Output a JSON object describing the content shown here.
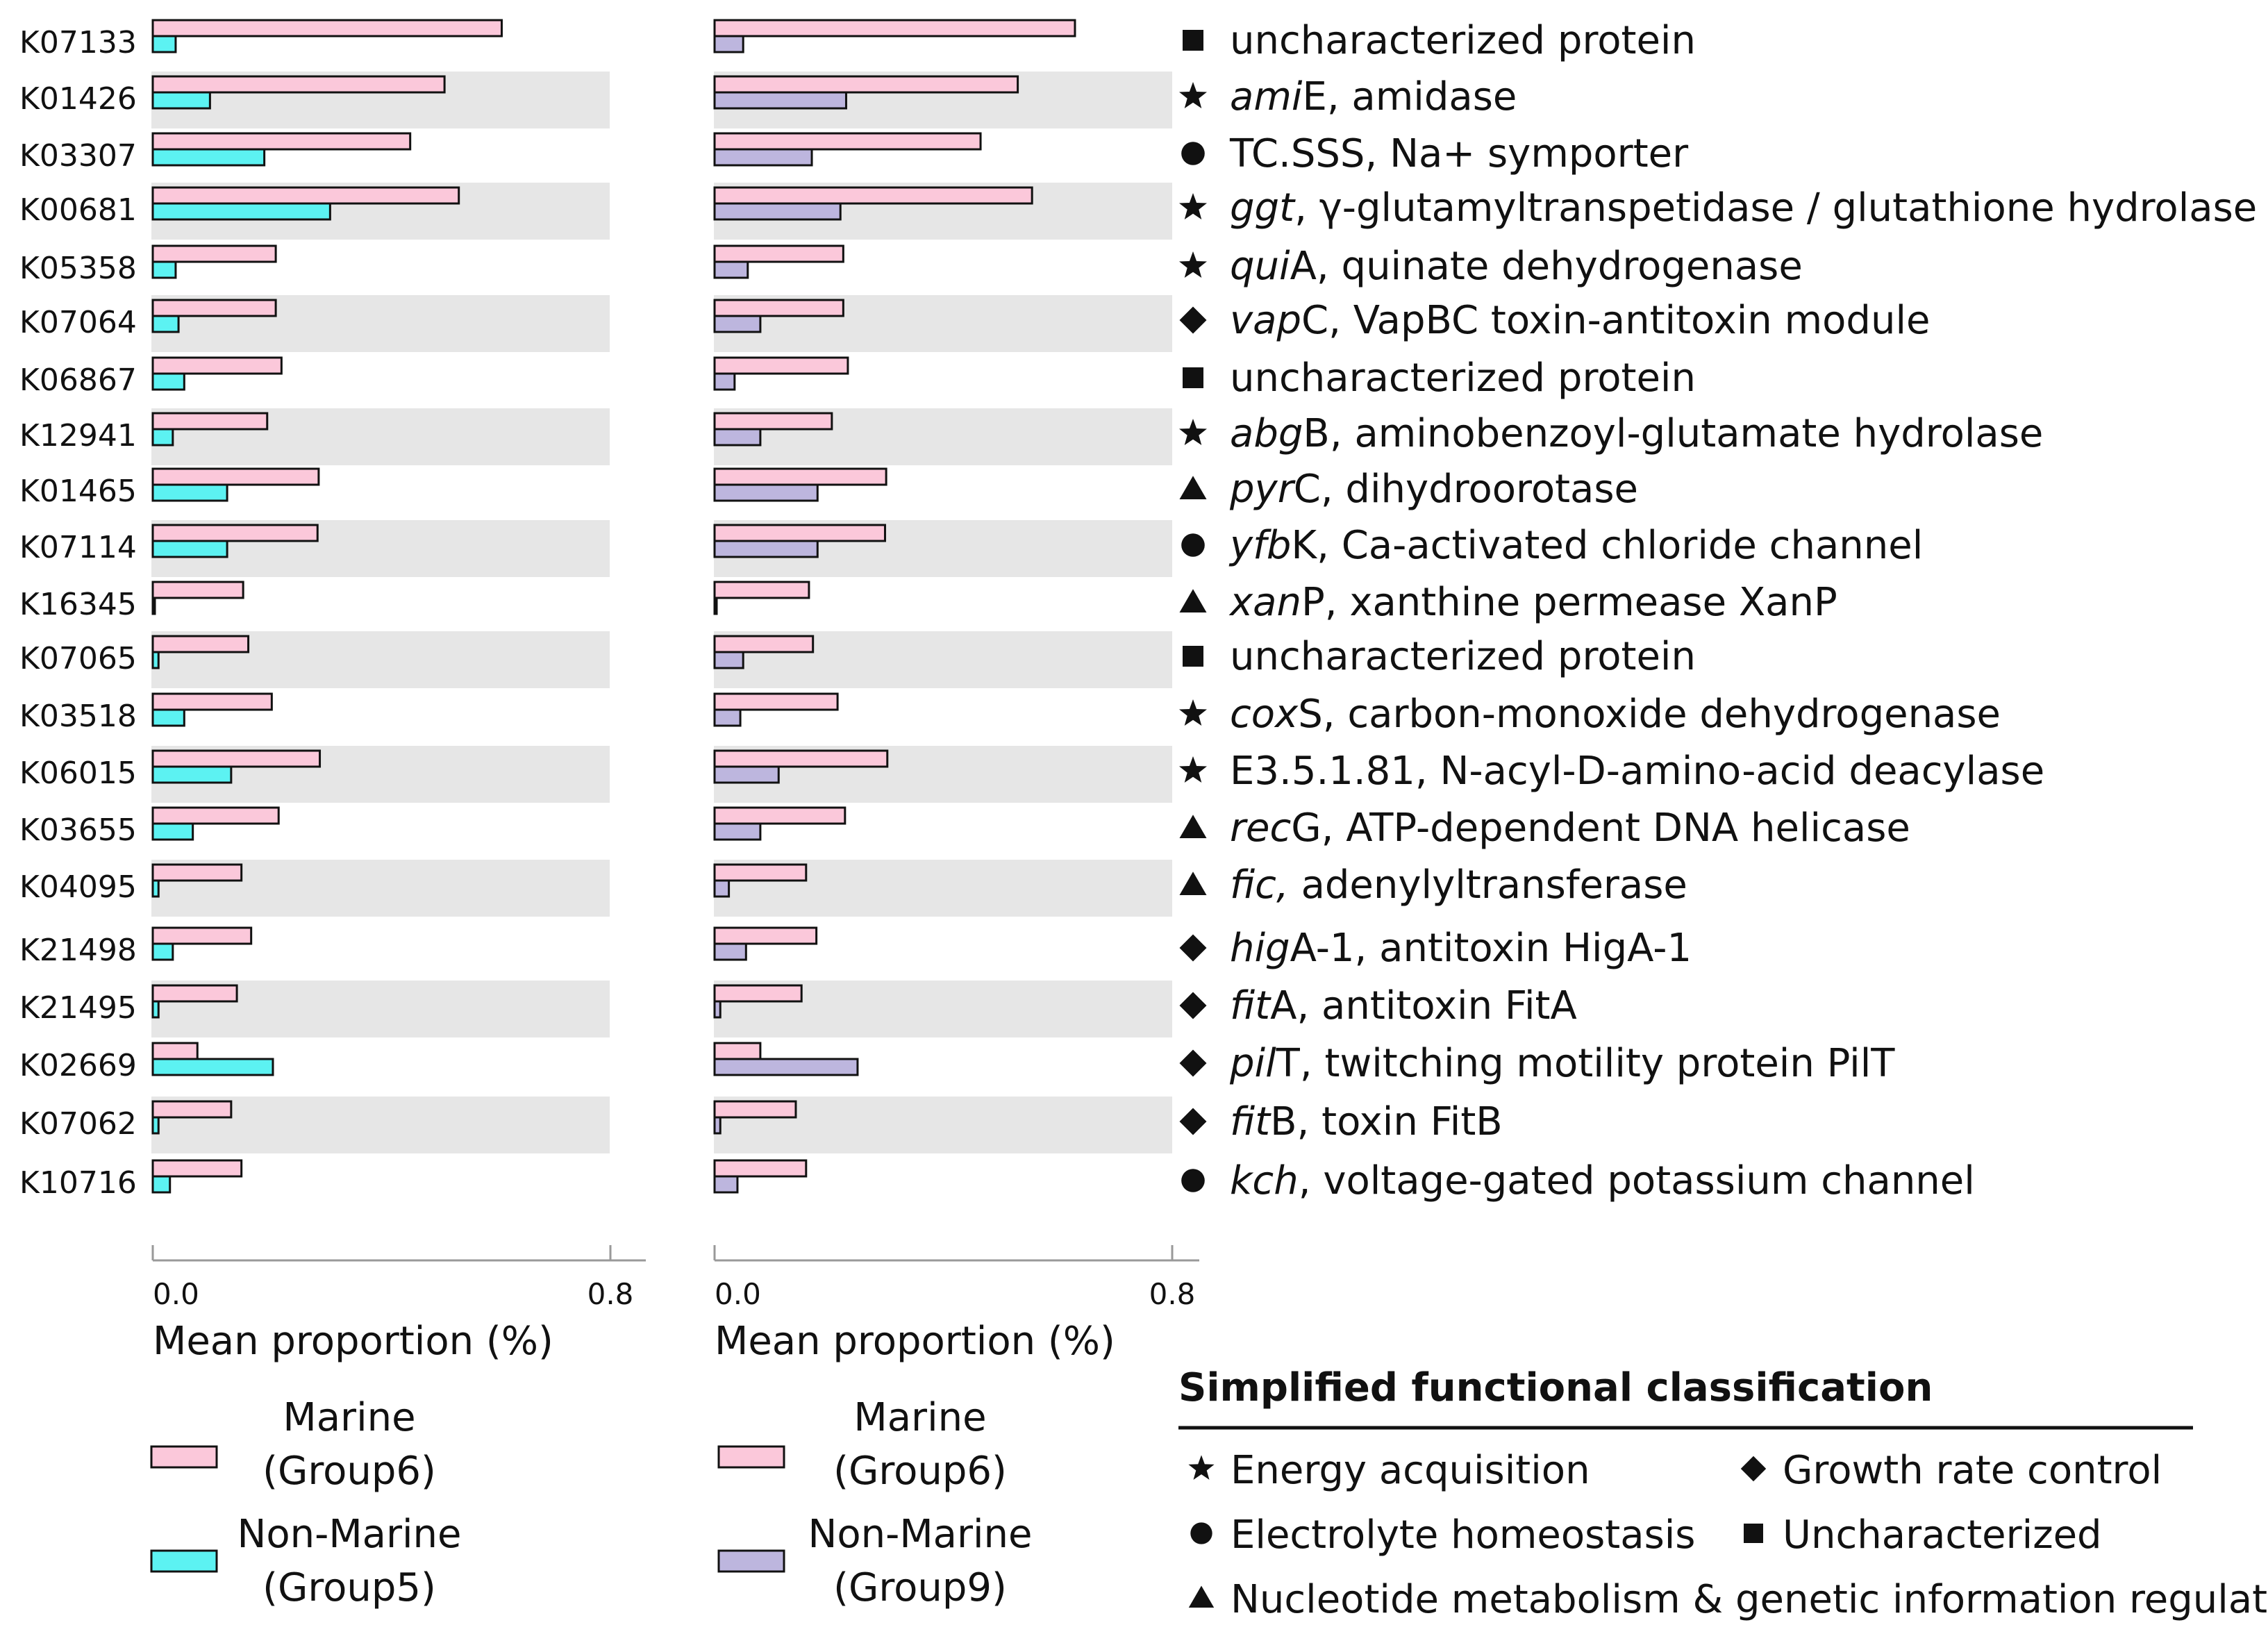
{
  "chart_data": [
    {
      "type": "bar",
      "orientation": "horizontal",
      "xlabel": "Mean proportion (%)",
      "xlim": [
        0,
        0.8
      ],
      "xticks": [
        "0.0",
        "0.8"
      ],
      "categories": [
        "K07133",
        "K01426",
        "K03307",
        "K00681",
        "K05358",
        "K07064",
        "K06867",
        "K12941",
        "K01465",
        "K07114",
        "K16345",
        "K07065",
        "K03518",
        "K06015",
        "K03655",
        "K04095",
        "K21498",
        "K21495",
        "K02669",
        "K07062",
        "K10716"
      ],
      "series": [
        {
          "name": "Marine (Group6)",
          "color": "#FBC8DA",
          "values": [
            0.61,
            0.51,
            0.45,
            0.535,
            0.215,
            0.215,
            0.225,
            0.2,
            0.29,
            0.288,
            0.158,
            0.167,
            0.208,
            0.292,
            0.22,
            0.155,
            0.172,
            0.147,
            0.078,
            0.137,
            0.155
          ]
        },
        {
          "name": "Non-Marine (Group5)",
          "color": "#5CF2F2",
          "values": [
            0.04,
            0.1,
            0.195,
            0.31,
            0.04,
            0.045,
            0.055,
            0.035,
            0.13,
            0.13,
            0.0,
            0.01,
            0.055,
            0.137,
            0.07,
            0.01,
            0.035,
            0.01,
            0.21,
            0.01,
            0.03
          ]
        }
      ],
      "legend": [
        {
          "line1": "Marine",
          "line2": "(Group6)"
        },
        {
          "line1": "Non-Marine",
          "line2": "(Group5)"
        }
      ]
    },
    {
      "type": "bar",
      "orientation": "horizontal",
      "xlabel": "Mean proportion (%)",
      "xlim": [
        0,
        0.8
      ],
      "xticks": [
        "0.0",
        "0.8"
      ],
      "categories": [
        "K07133",
        "K01426",
        "K03307",
        "K00681",
        "K05358",
        "K07064",
        "K06867",
        "K12941",
        "K01465",
        "K07114",
        "K16345",
        "K07065",
        "K03518",
        "K06015",
        "K03655",
        "K04095",
        "K21498",
        "K21495",
        "K02669",
        "K07062",
        "K10716"
      ],
      "series": [
        {
          "name": "Marine (Group6)",
          "color": "#FBC8DA",
          "values": [
            0.63,
            0.53,
            0.465,
            0.555,
            0.225,
            0.225,
            0.233,
            0.205,
            0.3,
            0.298,
            0.165,
            0.172,
            0.215,
            0.302,
            0.228,
            0.16,
            0.178,
            0.152,
            0.08,
            0.142,
            0.16
          ]
        },
        {
          "name": "Non-Marine (Group9)",
          "color": "#BDB6DE",
          "values": [
            0.05,
            0.23,
            0.17,
            0.22,
            0.058,
            0.08,
            0.035,
            0.08,
            0.18,
            0.18,
            0.0,
            0.05,
            0.045,
            0.112,
            0.08,
            0.025,
            0.055,
            0.01,
            0.25,
            0.01,
            0.04
          ]
        }
      ],
      "legend": [
        {
          "line1": "Marine",
          "line2": "(Group6)"
        },
        {
          "line1": "Non-Marine",
          "line2": "(Group9)"
        }
      ]
    }
  ],
  "annotations": [
    {
      "symbol": "square",
      "gene": "",
      "rest": "uncharacterized protein"
    },
    {
      "symbol": "star",
      "gene": "ami",
      "rest": "E, amidase"
    },
    {
      "symbol": "circle",
      "gene": "",
      "rest": "TC.SSS, Na+ symporter"
    },
    {
      "symbol": "star",
      "gene": "ggt",
      "rest": ", γ-glutamyltranspetidase / glutathione hydrolase"
    },
    {
      "symbol": "star",
      "gene": "qui",
      "rest": "A, quinate dehydrogenase"
    },
    {
      "symbol": "diamond",
      "gene": "vap",
      "rest": "C, VapBC toxin-antitoxin module"
    },
    {
      "symbol": "square",
      "gene": "",
      "rest": "uncharacterized protein"
    },
    {
      "symbol": "star",
      "gene": "abg",
      "rest": "B, aminobenzoyl-glutamate hydrolase"
    },
    {
      "symbol": "triangle",
      "gene": "pyr",
      "rest": "C, dihydroorotase"
    },
    {
      "symbol": "circle",
      "gene": "yfb",
      "rest": "K, Ca-activated chloride channel"
    },
    {
      "symbol": "triangle",
      "gene": "xan",
      "rest": "P, xanthine permease XanP"
    },
    {
      "symbol": "square",
      "gene": "",
      "rest": "uncharacterized protein"
    },
    {
      "symbol": "star",
      "gene": "cox",
      "rest": "S, carbon-monoxide dehydrogenase"
    },
    {
      "symbol": "star",
      "gene": "",
      "rest": "E3.5.1.81, N-acyl-D-amino-acid deacylase"
    },
    {
      "symbol": "triangle",
      "gene": "rec",
      "rest": "G, ATP-dependent DNA helicase"
    },
    {
      "symbol": "triangle",
      "gene": "fic,",
      "rest": " adenylyltransferase"
    },
    {
      "symbol": "diamond",
      "gene": "hig",
      "rest": "A-1, antitoxin HigA-1"
    },
    {
      "symbol": "diamond",
      "gene": "fit",
      "rest": "A, antitoxin FitA"
    },
    {
      "symbol": "diamond",
      "gene": "pil",
      "rest": "T, twitching motility protein PilT"
    },
    {
      "symbol": "diamond",
      "gene": "fit",
      "rest": "B, toxin FitB"
    },
    {
      "symbol": "circle",
      "gene": "kch",
      "rest": ", voltage-gated potassium channel"
    }
  ],
  "classification": {
    "title": "Simplified functional classification",
    "items": [
      {
        "symbol": "star",
        "label": "Energy acquisition"
      },
      {
        "symbol": "diamond",
        "label": "Growth rate control"
      },
      {
        "symbol": "circle",
        "label": "Electrolyte homeostasis"
      },
      {
        "symbol": "square",
        "label": "Uncharacterized"
      },
      {
        "symbol": "triangle",
        "label": "Nucleotide metabolism & genetic information regulation"
      }
    ]
  },
  "colors": {
    "band": "#E6E6E6",
    "axis": "#999999",
    "ink": "#111111"
  }
}
